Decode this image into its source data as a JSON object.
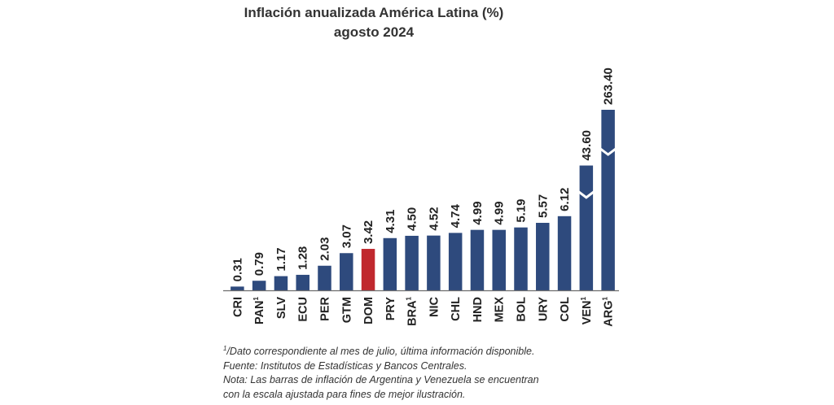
{
  "chart_data": {
    "type": "bar",
    "title": "Inflación anualizada América Latina (%)",
    "subtitle": "agosto 2024",
    "xlabel": "",
    "ylabel": "",
    "categories": [
      "CRI",
      "PAN",
      "SLV",
      "ECU",
      "PER",
      "GTM",
      "DOM",
      "PRY",
      "BRA",
      "NIC",
      "CHL",
      "HND",
      "MEX",
      "BOL",
      "URY",
      "COL",
      "VEN",
      "ARG"
    ],
    "category_superscripts": [
      "",
      "1",
      "",
      "",
      "",
      "",
      "",
      "",
      "1",
      "",
      "",
      "",
      "",
      "",
      "",
      "",
      "1",
      "1"
    ],
    "values": [
      0.31,
      0.79,
      1.17,
      1.28,
      2.03,
      3.07,
      3.42,
      4.31,
      4.5,
      4.52,
      4.74,
      4.99,
      4.99,
      5.19,
      5.57,
      6.12,
      43.6,
      263.4
    ],
    "value_labels": [
      "0.31",
      "0.79",
      "1.17",
      "1.28",
      "2.03",
      "3.07",
      "3.42",
      "4.31",
      "4.50",
      "4.52",
      "4.74",
      "4.99",
      "4.99",
      "5.19",
      "5.57",
      "6.12",
      "43.60",
      "263.40"
    ],
    "highlight_category": "DOM",
    "axis_break_categories": [
      "VEN",
      "ARG"
    ],
    "scaled_display_values": [
      0.31,
      0.79,
      1.17,
      1.28,
      2.03,
      3.07,
      3.42,
      4.31,
      4.5,
      4.52,
      4.74,
      4.99,
      4.99,
      5.19,
      5.57,
      6.12,
      10.3,
      14.9
    ],
    "colors": {
      "bar": "#2e4a7d",
      "highlight": "#c0282e",
      "axis": "#6d6d6d"
    },
    "grid": false,
    "legend": "none"
  },
  "notes": {
    "note1_sup": "1",
    "note1": "/Dato correspondiente al mes de julio, última información disponible.",
    "source": "Fuente: Institutos de Estadísticas y Bancos Centrales.",
    "note2_line1": "Nota: Las barras de inflación de Argentina y Venezuela se encuentran",
    "note2_line2": "con la escala ajustada para fines de mejor ilustración."
  }
}
